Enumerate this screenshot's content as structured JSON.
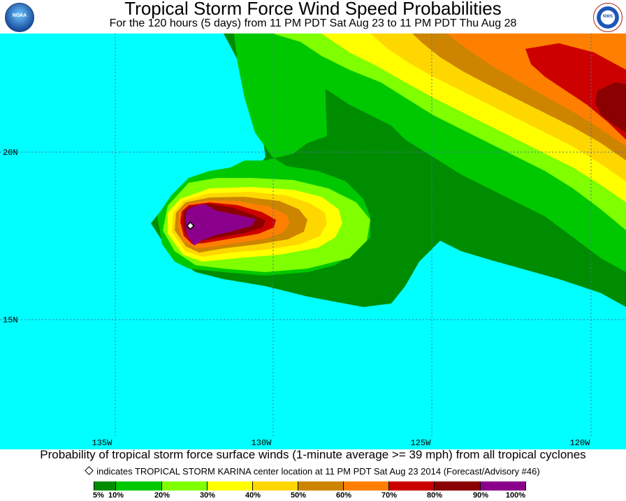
{
  "header": {
    "title": "Tropical Storm Force Wind Speed Probabilities",
    "subtitle": "For the 120 hours (5 days) from 11 PM PDT Sat Aug 23 to 11 PM PDT Thu Aug 28",
    "logo_left": "NOAA",
    "logo_right": "NWS"
  },
  "map": {
    "ocean_color": "#00ffff",
    "grid_color": "#4a6fa5",
    "lon_labels": [
      "135W",
      "130W",
      "125W",
      "120W"
    ],
    "lat_labels": [
      "20N",
      "15N"
    ],
    "storm_marker": "storm-center-diamond-icon"
  },
  "caption": {
    "line1": "Probability of tropical storm force surface winds (1-minute average >= 39 mph) from all tropical cyclones",
    "line2": "indicates TROPICAL STORM KARINA center location at 11 PM PDT Sat Aug 23 2014 (Forecast/Advisory #46)"
  },
  "legend": {
    "colors": [
      "#008c00",
      "#00c800",
      "#7fff00",
      "#ffff00",
      "#ffd700",
      "#cd8500",
      "#ff7f00",
      "#cd0000",
      "#8b0000",
      "#8b008b"
    ],
    "labels": [
      "5%",
      "10%",
      "20%",
      "30%",
      "40%",
      "50%",
      "60%",
      "70%",
      "80%",
      "90%",
      "100%"
    ]
  }
}
